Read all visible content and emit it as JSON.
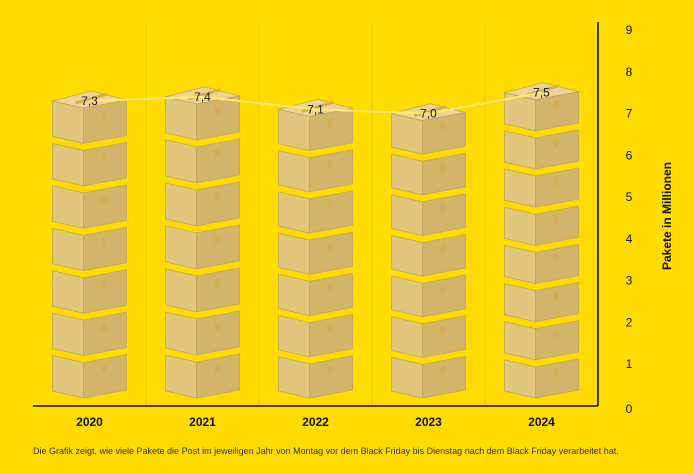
{
  "chart_data": {
    "type": "bar",
    "categories": [
      "2020",
      "2021",
      "2022",
      "2023",
      "2024"
    ],
    "values": [
      7.3,
      7.4,
      7.1,
      7.0,
      7.5
    ],
    "value_labels": [
      "7,3",
      "7,4",
      "7,1",
      "7,0",
      "7,5"
    ],
    "trend_line": true,
    "ylabel": "Pakete in Millionen",
    "y_axis_position": "right",
    "ylim": [
      0,
      9
    ],
    "yticks": [
      0,
      1,
      2,
      3,
      4,
      5,
      6,
      7,
      8,
      9
    ],
    "grid": false,
    "bar_style": "stacked-parcel-boxes"
  },
  "caption": "Die Grafik zeigt, wie viele Pakete die Post im jeweiligen Jahr von Montag vor dem Black Friday bis Dienstag nach dem Black Friday verarbeitet hat.",
  "colors": {
    "background": "#FFDC00",
    "box_front": "#E3C67E",
    "box_side": "#D2B46A",
    "box_top": "#EDD495",
    "box_edge": "#C4A55C",
    "tape": "#D4AE58",
    "trend_line": "#FFEA70",
    "axis": "#111111",
    "divider": "#E6C300"
  }
}
